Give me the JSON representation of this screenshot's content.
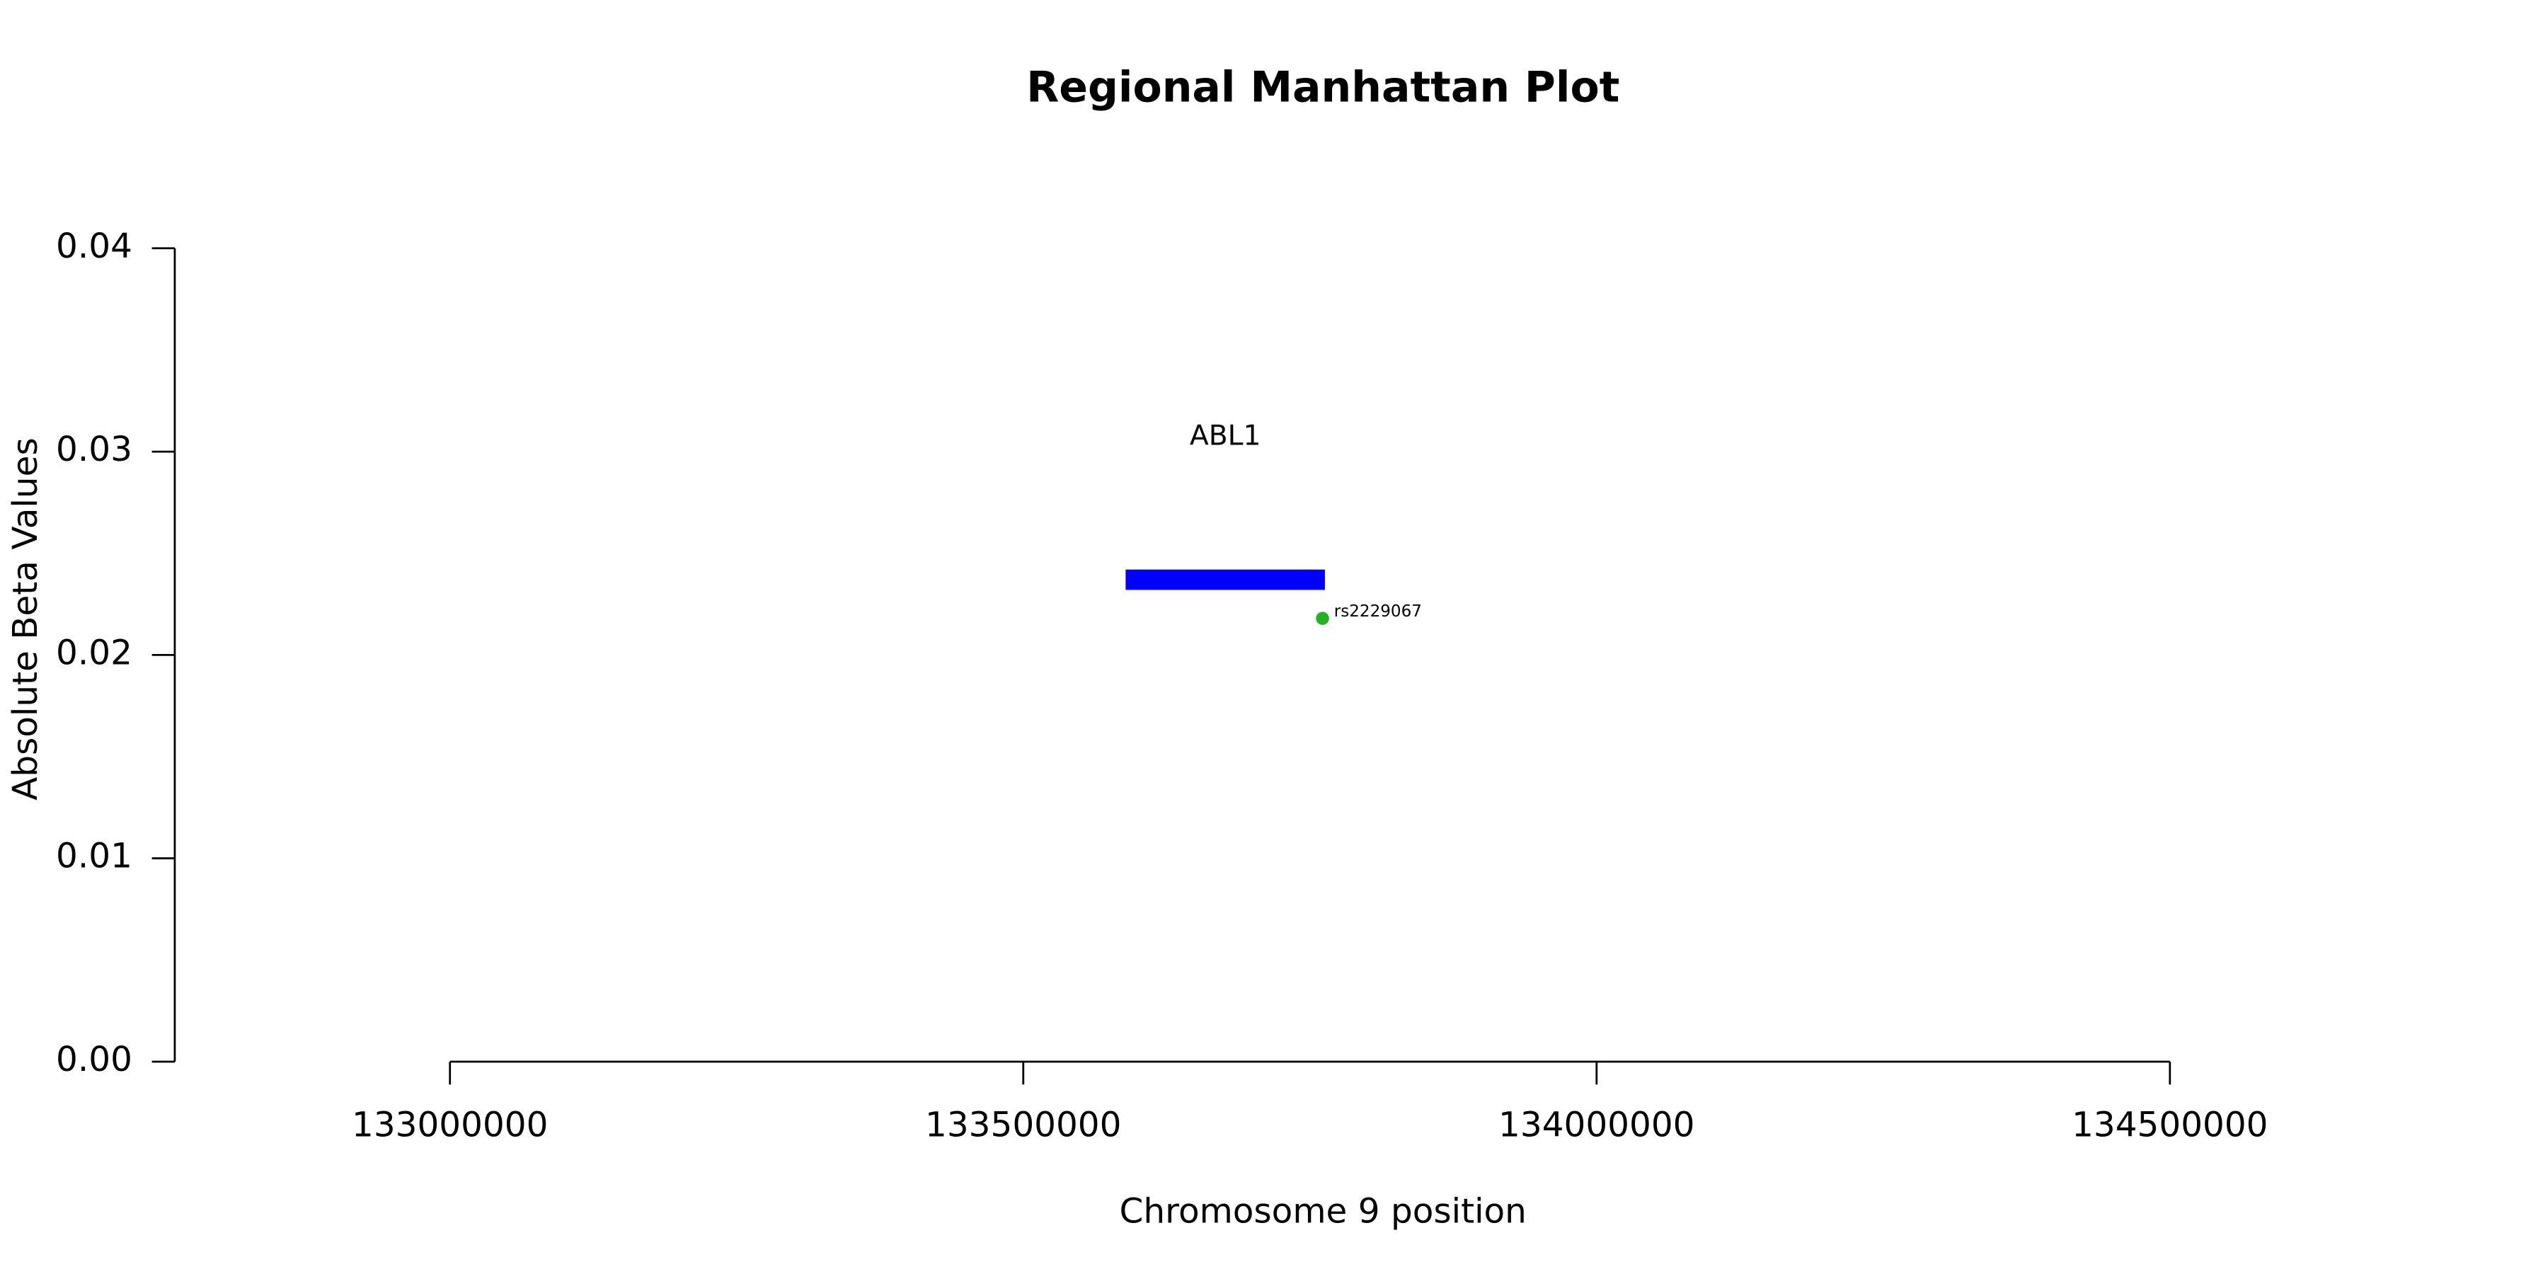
{
  "chart_data": {
    "type": "scatter",
    "title": "Regional Manhattan Plot",
    "x_label": "Chromosome 9 position",
    "y_label": "Absolute Beta Values",
    "x": [
      133761000
    ],
    "values": [
      0.0218
    ],
    "point_labels": [
      "rs2229067"
    ],
    "color": "#22b222",
    "genes": [
      {
        "name": "ABL1",
        "start": 133589268,
        "end": 133763062,
        "y": [
          0.0232,
          0.0242
        ],
        "color": "#0000ff"
      }
    ],
    "xlim": [
      132760000,
      134740000
    ],
    "xticks": [
      133000000,
      133500000,
      134000000,
      134500000
    ],
    "ylim": [
      0,
      0.04
    ],
    "yticks": [
      {
        "value": 0,
        "label": "0.00"
      },
      0.01,
      0.02,
      0.03,
      0.04
    ]
  }
}
